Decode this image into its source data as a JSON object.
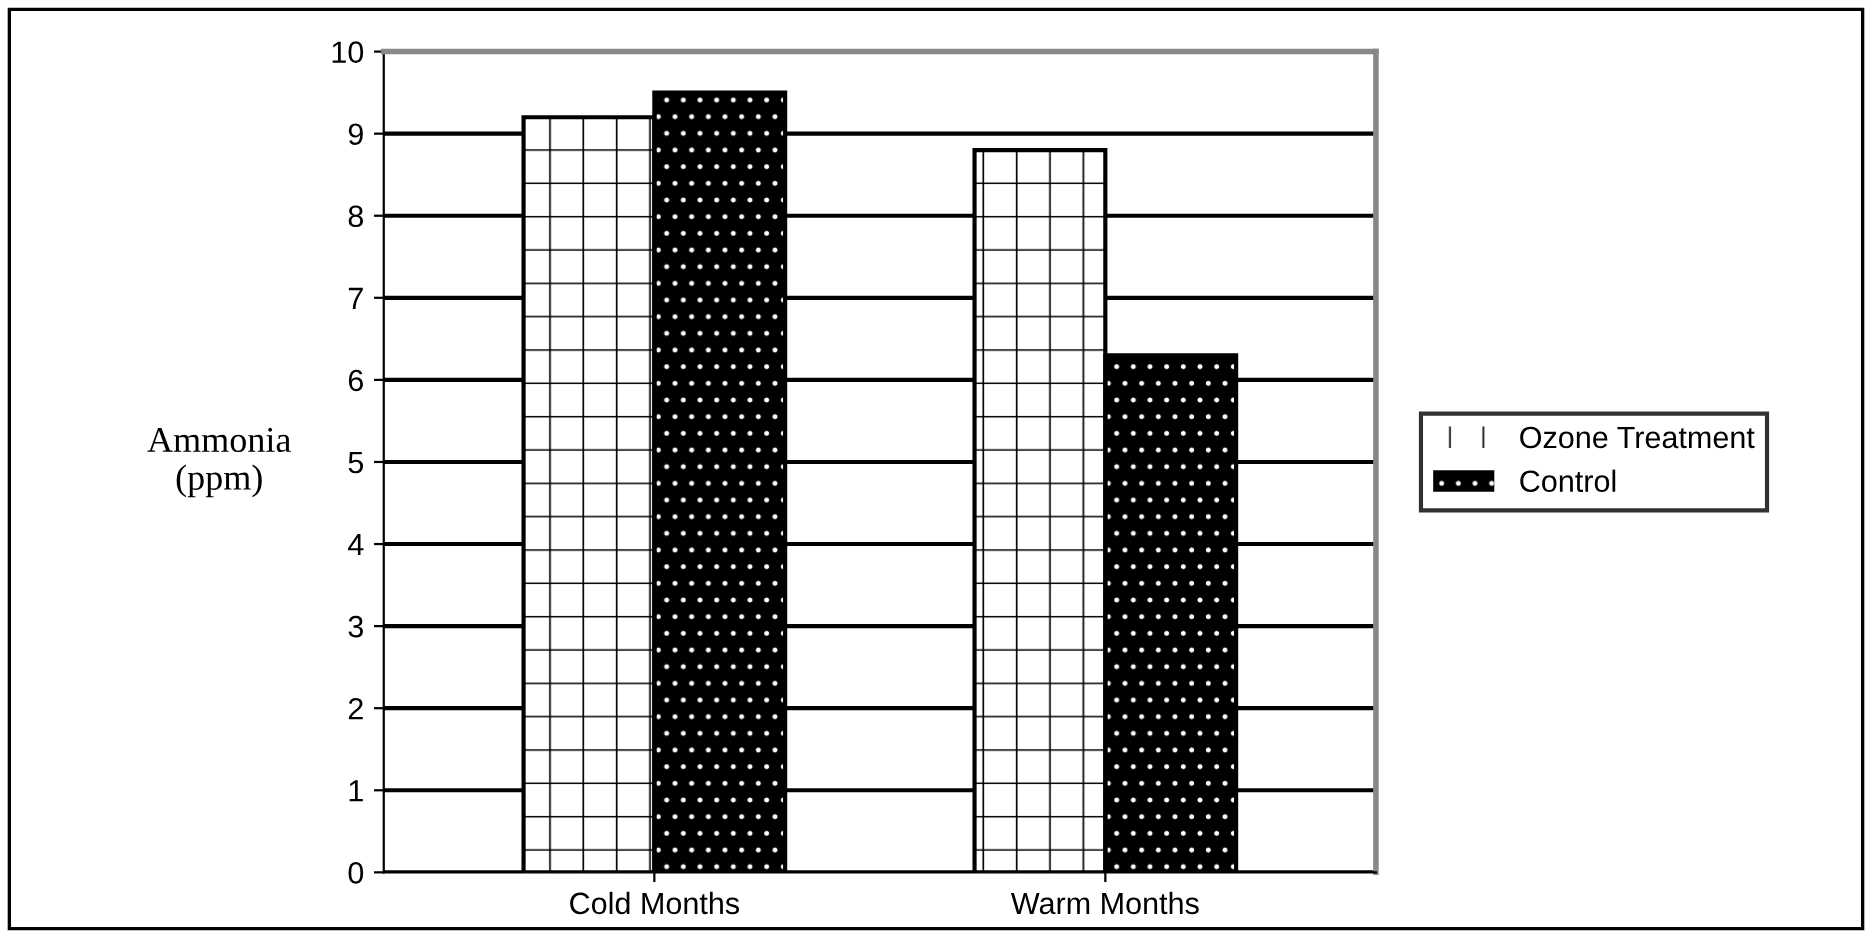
{
  "chart_data": {
    "type": "bar",
    "ylabel": "Ammonia\n(ppm)",
    "categories": [
      "Cold Months",
      "Warm Months"
    ],
    "series": [
      {
        "name": "Ozone Treatment",
        "color": "#ffffff",
        "values": [
          9.2,
          8.8
        ]
      },
      {
        "name": "Control",
        "color": "#000000",
        "values": [
          9.5,
          6.3
        ]
      }
    ],
    "ylim": [
      0,
      10
    ],
    "yticks": [
      0,
      1,
      2,
      3,
      4,
      5,
      6,
      7,
      8,
      9,
      10
    ],
    "grid": "y",
    "legend": "right"
  }
}
